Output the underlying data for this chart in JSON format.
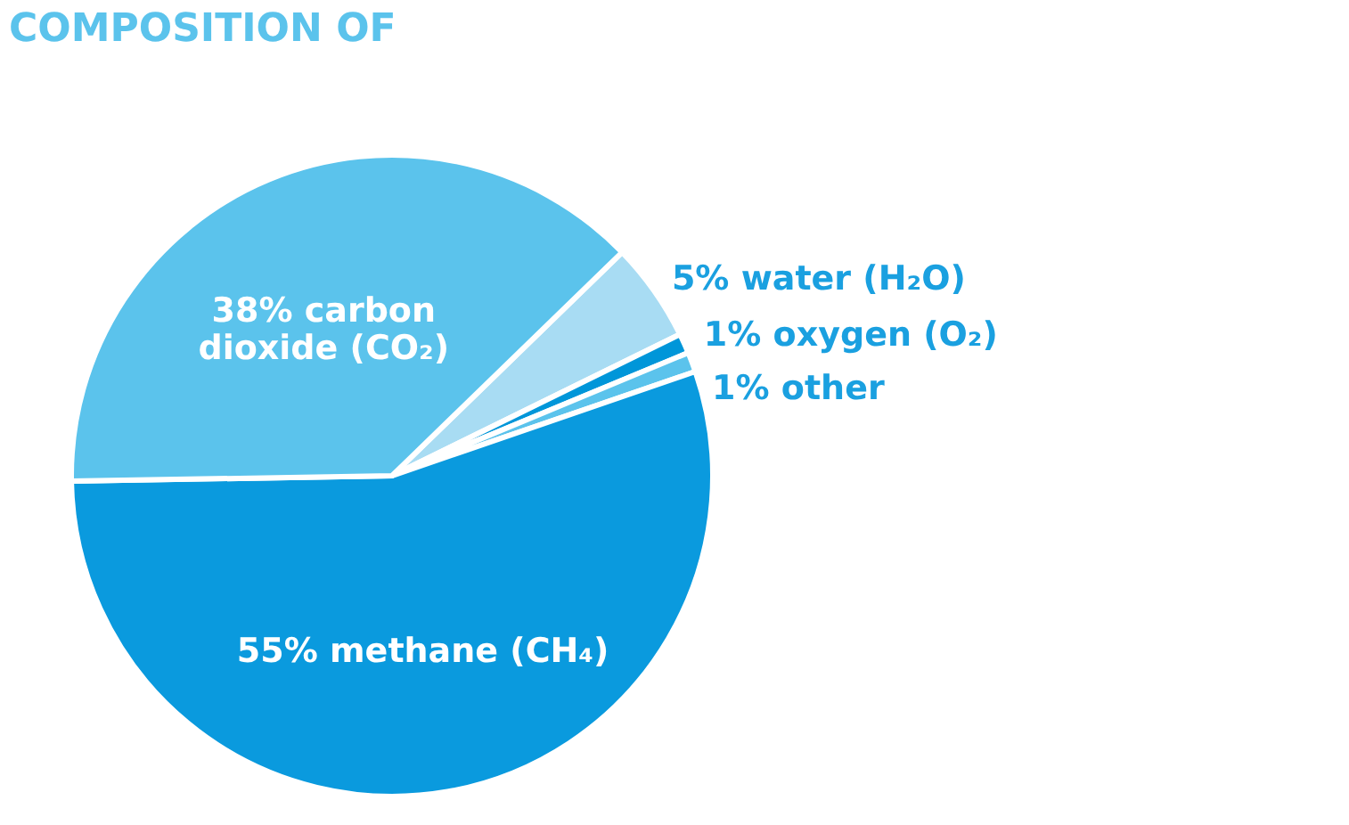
{
  "chart_data": {
    "type": "pie",
    "title": "COMPOSITION OF",
    "categories": [
      "water (H₂O)",
      "oxygen (O₂)",
      "other",
      "methane (CH₄)",
      "carbon\ndioxide  (CO₂)"
    ],
    "values": [
      5,
      1,
      1,
      55,
      38
    ],
    "value_labels": [
      "5%",
      "1%",
      "1%",
      "55%",
      "38%"
    ],
    "colors": [
      "#a8dcf3",
      "#0096d9",
      "#5bc3ec",
      "#0a9ade",
      "#5bc3ec"
    ]
  }
}
